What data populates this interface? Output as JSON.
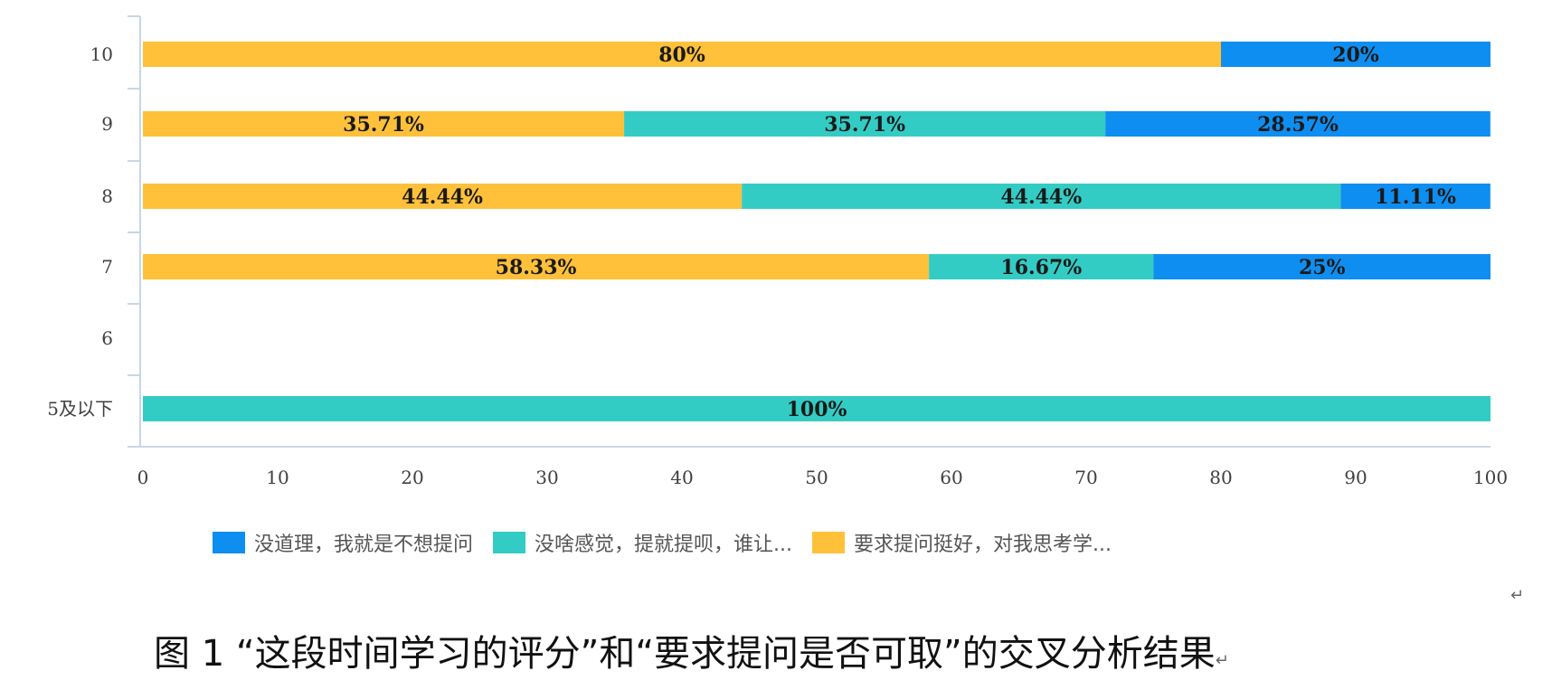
{
  "chart_data": {
    "type": "bar",
    "orientation": "horizontal",
    "stacked": true,
    "categories": [
      "10",
      "9",
      "8",
      "7",
      "6",
      "5及以下"
    ],
    "series": [
      {
        "name": "要求提问挺好，对我思考学...",
        "color": "#FFC03A",
        "values": [
          80,
          35.71,
          44.44,
          58.33,
          0,
          0
        ],
        "labels": [
          "80%",
          "35.71%",
          "44.44%",
          "58.33%",
          "",
          ""
        ]
      },
      {
        "name": "没啥感觉，提就提呗，谁让...",
        "color": "#33CCC4",
        "values": [
          0,
          35.71,
          44.44,
          16.67,
          0,
          100
        ],
        "labels": [
          "",
          "35.71%",
          "44.44%",
          "16.67%",
          "",
          "100%"
        ]
      },
      {
        "name": "没道理，我就是不想提问",
        "color": "#0E8EF0",
        "values": [
          20,
          28.57,
          11.11,
          25,
          0,
          0
        ],
        "labels": [
          "20%",
          "28.57%",
          "11.11%",
          "25%",
          "",
          ""
        ]
      }
    ],
    "xlim": [
      0,
      100
    ],
    "xticks": [
      "0",
      "10",
      "20",
      "30",
      "40",
      "50",
      "60",
      "70",
      "80",
      "90",
      "100"
    ],
    "legend_position": "bottom",
    "grid": false
  },
  "legend": [
    {
      "label": "没道理，我就是不想提问",
      "color": "#0E8EF0"
    },
    {
      "label": "没啥感觉，提就提呗，谁让...",
      "color": "#33CCC4"
    },
    {
      "label": "要求提问挺好，对我思考学...",
      "color": "#FFC03A"
    }
  ],
  "caption": "图 1  “这段时间学习的评分”和“要求提问是否可取”的交叉分析结果",
  "caption_mark": "↵",
  "page_mark": "↵"
}
